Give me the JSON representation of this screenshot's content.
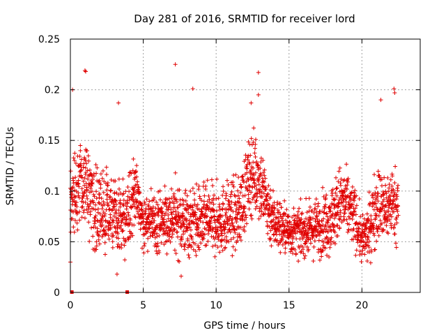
{
  "chart_data": {
    "type": "scatter",
    "title": "Day 281 of 2016, SRMTID for receiver lord",
    "xlabel": "GPS time / hours",
    "ylabel": "SRMTID / TECUs",
    "xlim": [
      0,
      24
    ],
    "ylim": [
      0,
      0.25
    ],
    "xticks": [
      0,
      5,
      10,
      15,
      20
    ],
    "xtick_labels": [
      "0",
      "5",
      "10",
      "15",
      "20"
    ],
    "yticks": [
      0,
      0.05,
      0.1,
      0.15,
      0.2,
      0.25
    ],
    "ytick_labels": [
      "0",
      "0.05",
      "0.1",
      "0.15",
      "0.2",
      "0.25"
    ],
    "grid": true,
    "marker": "+",
    "color": "#e00000",
    "approx_point_count": 2300,
    "envelope": {
      "x": [
        0.0,
        0.5,
        1.0,
        1.5,
        2.0,
        2.5,
        3.0,
        3.5,
        4.0,
        4.5,
        5.0,
        6.0,
        7.0,
        8.0,
        9.0,
        10.0,
        11.0,
        11.5,
        12.0,
        12.5,
        13.0,
        13.5,
        14.0,
        15.0,
        16.0,
        17.0,
        18.0,
        18.5,
        19.0,
        19.5,
        20.0,
        20.5,
        21.0,
        21.5,
        22.0,
        22.5
      ],
      "median": [
        0.09,
        0.1,
        0.11,
        0.09,
        0.08,
        0.08,
        0.075,
        0.07,
        0.08,
        0.1,
        0.07,
        0.07,
        0.075,
        0.07,
        0.07,
        0.07,
        0.075,
        0.075,
        0.1,
        0.12,
        0.11,
        0.085,
        0.07,
        0.06,
        0.06,
        0.065,
        0.075,
        0.09,
        0.085,
        0.075,
        0.05,
        0.06,
        0.09,
        0.08,
        0.09,
        0.085
      ],
      "spread": [
        0.03,
        0.04,
        0.04,
        0.035,
        0.035,
        0.03,
        0.03,
        0.03,
        0.03,
        0.03,
        0.025,
        0.025,
        0.03,
        0.03,
        0.03,
        0.03,
        0.03,
        0.03,
        0.035,
        0.035,
        0.035,
        0.03,
        0.025,
        0.02,
        0.02,
        0.025,
        0.03,
        0.03,
        0.03,
        0.025,
        0.02,
        0.025,
        0.035,
        0.03,
        0.03,
        0.03
      ]
    },
    "outliers": [
      {
        "x": 0.15,
        "y": 0.2
      },
      {
        "x": 1.0,
        "y": 0.219
      },
      {
        "x": 1.05,
        "y": 0.218
      },
      {
        "x": 3.3,
        "y": 0.187
      },
      {
        "x": 7.2,
        "y": 0.225
      },
      {
        "x": 8.4,
        "y": 0.201
      },
      {
        "x": 12.9,
        "y": 0.217
      },
      {
        "x": 12.9,
        "y": 0.195
      },
      {
        "x": 12.4,
        "y": 0.187
      },
      {
        "x": 21.3,
        "y": 0.19
      },
      {
        "x": 22.2,
        "y": 0.201
      },
      {
        "x": 22.25,
        "y": 0.197
      },
      {
        "x": 0.0,
        "y": 0.03
      },
      {
        "x": 3.2,
        "y": 0.018
      },
      {
        "x": 7.6,
        "y": 0.016
      }
    ],
    "zero_markers": [
      {
        "x": 0.1,
        "y": 0
      },
      {
        "x": 3.9,
        "y": 0
      }
    ]
  }
}
